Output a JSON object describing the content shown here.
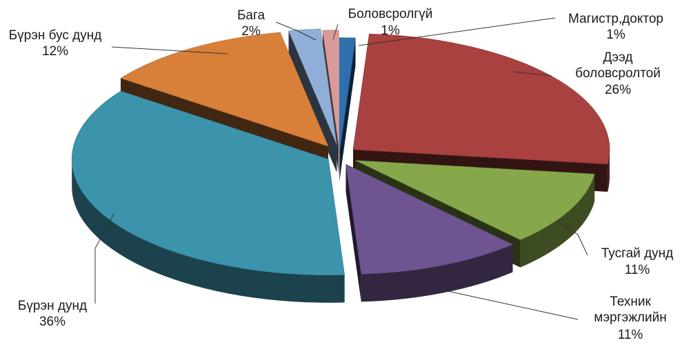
{
  "chart_data": {
    "type": "pie",
    "style": "3d-exploded",
    "title": "",
    "legend": "none",
    "slices": [
      {
        "label": "Магистр,доктор",
        "value": 1,
        "value_label": "1%",
        "color": "#2e6fad"
      },
      {
        "label": "Дээд боловсролтой",
        "label_lines": [
          "Дээд",
          "боловсролтой"
        ],
        "value": 26,
        "value_label": "26%",
        "color": "#a8413f"
      },
      {
        "label": "Тусгай дунд",
        "value": 11,
        "value_label": "11%",
        "color": "#87a84a"
      },
      {
        "label": "Техник мэргэжлийн",
        "label_lines": [
          "Техник",
          "мэргэжлийн"
        ],
        "value": 11,
        "value_label": "11%",
        "color": "#6e5491"
      },
      {
        "label": "Бүрэн дунд",
        "value": 36,
        "value_label": "36%",
        "color": "#3c93ac"
      },
      {
        "label": "Бүрэн бус дунд",
        "value": 12,
        "value_label": "12%",
        "color": "#d8803a"
      },
      {
        "label": "Бага",
        "value": 2,
        "value_label": "2%",
        "color": "#8faed8"
      },
      {
        "label": "Боловсролгүй",
        "value": 1,
        "value_label": "1%",
        "color": "#d99a9a"
      }
    ]
  }
}
